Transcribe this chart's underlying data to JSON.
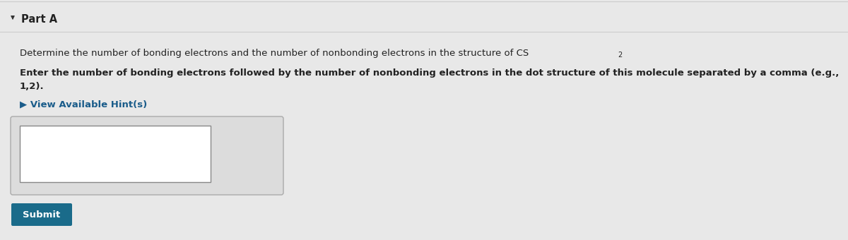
{
  "background_color": "#e8e8e8",
  "panel_color": "#e8e8e8",
  "title": "Part A",
  "title_fontsize": 10.5,
  "title_color": "#222222",
  "arrow_color": "#333333",
  "line1_main": "Determine the number of bonding electrons and the number of nonbonding electrons in the structure of CS",
  "line1_sub": "2",
  "line1_fontsize": 9.5,
  "line2_bold": "Enter the number of bonding electrons followed by the number of nonbonding electrons in the dot structure of this molecule separated by a comma (e.g.,",
  "line3_bold": "1,2).",
  "line_fontsize": 9.5,
  "hint_text": "▶ View Available Hint(s)",
  "hint_color": "#1a5c8a",
  "hint_fontsize": 9.5,
  "text_color": "#222222",
  "separator_color": "#cccccc",
  "outer_box_facecolor": "#dcdcdc",
  "outer_box_edgecolor": "#aaaaaa",
  "inner_box_facecolor": "#ffffff",
  "inner_box_edgecolor": "#888888",
  "submit_btn_color": "#1a6b8a",
  "submit_btn_text": "Submit",
  "submit_btn_text_color": "#ffffff",
  "submit_btn_fontsize": 9.5
}
